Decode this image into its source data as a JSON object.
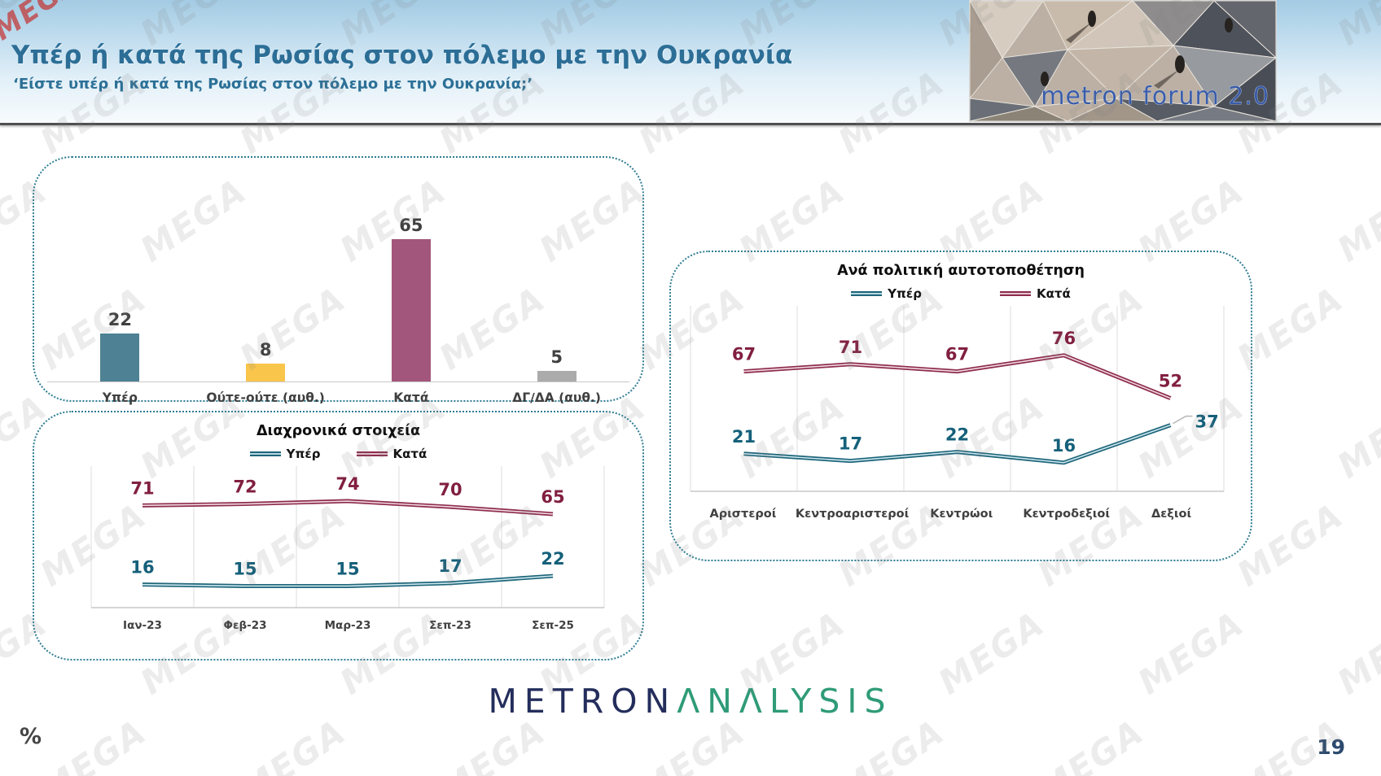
{
  "watermark": {
    "text": "MEGA",
    "accent_color": "#c23b3b"
  },
  "header": {
    "title": "Υπέρ ή κατά της Ρωσίας στον πόλεμο με την Ουκρανία",
    "subtitle": "‘Είστε υπέρ ή κατά της Ρωσίας στον πόλεμο με την Ουκρανία;’",
    "logo_text": "metron forum 2.0"
  },
  "footer": {
    "percent_symbol": "%",
    "logo_part1": "METRON",
    "logo_part2": "ΛNΛLYSIS",
    "page_number": "19"
  },
  "colors": {
    "panel_border": "#2f7d93",
    "title_blue": "#2c6e96",
    "grid": "#dedede",
    "axis": "#c8c8c8",
    "bar_teal": "#4e8193",
    "bar_yellow": "#f9c54b",
    "bar_maroon": "#a3567c",
    "bar_gray": "#ababab",
    "line_teal": "#1e6579",
    "line_maroon": "#8e2c4e",
    "brand_navy": "#242e5c",
    "brand_green": "#2f9b78"
  },
  "chart_data": [
    {
      "type": "bar",
      "title": "",
      "categories": [
        "Υπέρ",
        "Ούτε-ούτε (αυθ.)",
        "Κατά",
        "ΔΓ/ΔΑ (αυθ.)"
      ],
      "values": [
        22,
        8,
        65,
        5
      ],
      "bar_colors": [
        "#4e8193",
        "#f9c54b",
        "#a3567c",
        "#ababab"
      ],
      "value_label_color": "#404040",
      "ylim": [
        0,
        100
      ],
      "grid": false,
      "value_labels": true
    },
    {
      "type": "line",
      "title": "Διαχρονικά στοιχεία",
      "categories": [
        "Ιαν-23",
        "Φεβ-23",
        "Μαρ-23",
        "Σεπ-23",
        "Σεπ-25"
      ],
      "series": [
        {
          "name": "Υπέρ",
          "values": [
            16,
            15,
            15,
            17,
            22
          ],
          "color": "#1e6579",
          "inner_color": "#cde8f0",
          "label_color": "#15607a"
        },
        {
          "name": "Κατά",
          "values": [
            71,
            72,
            74,
            70,
            65
          ],
          "color": "#8e2c4e",
          "inner_color": "#f0d9e1",
          "label_color": "#811f41"
        }
      ],
      "legend_position": "top",
      "ylim": [
        0,
        100
      ],
      "grid": "vertical"
    },
    {
      "type": "line",
      "title": "Ανά πολιτική αυτοτοποθέτηση",
      "categories": [
        "Αριστεροί",
        "Κεντροαριστεροί",
        "Κεντρώοι",
        "Κεντροδεξιοί",
        "Δεξιοί"
      ],
      "series": [
        {
          "name": "Υπέρ",
          "values": [
            21,
            17,
            22,
            16,
            37
          ],
          "color": "#1e6579",
          "inner_color": "#cde8f0",
          "label_color": "#15607a",
          "callout_last_point": true
        },
        {
          "name": "Κατά",
          "values": [
            67,
            71,
            67,
            76,
            52
          ],
          "color": "#8e2c4e",
          "inner_color": "#f0d9e1",
          "label_color": "#811f41"
        }
      ],
      "legend_position": "top",
      "ylim": [
        0,
        100
      ],
      "grid": "vertical"
    }
  ]
}
